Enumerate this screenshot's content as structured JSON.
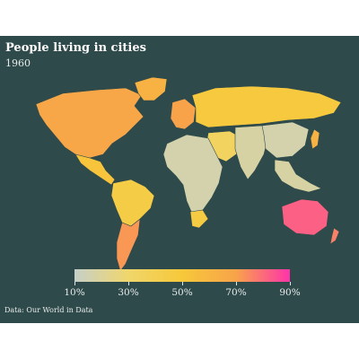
{
  "title": "People living in cities",
  "subtitle": "1960",
  "source": "Data: Our World in Data",
  "colors": {
    "background": "#2f4a4b",
    "scale": [
      "#c6d0c9",
      "#f0d66b",
      "#f7c83a",
      "#f8a34a",
      "#ff33aa"
    ]
  },
  "legend": {
    "min": 0.1,
    "max": 0.9,
    "ticks": [
      {
        "value": 0.1,
        "label": "10%"
      },
      {
        "value": 0.3,
        "label": "30%"
      },
      {
        "value": 0.5,
        "label": "50%"
      },
      {
        "value": 0.7,
        "label": "70%"
      },
      {
        "value": 0.9,
        "label": "90%"
      }
    ]
  },
  "regions": [
    {
      "name": "North America",
      "share": 0.68
    },
    {
      "name": "Greenland",
      "share": 0.62
    },
    {
      "name": "Mexico & Central America",
      "share": 0.52
    },
    {
      "name": "Northern South America",
      "share": 0.45
    },
    {
      "name": "Southern South America",
      "share": 0.72
    },
    {
      "name": "Western Europe",
      "share": 0.7
    },
    {
      "name": "Eastern Europe & Russia",
      "share": 0.48
    },
    {
      "name": "Middle East",
      "share": 0.35
    },
    {
      "name": "Africa",
      "share": 0.16
    },
    {
      "name": "South Africa",
      "share": 0.46
    },
    {
      "name": "South & Central Asia",
      "share": 0.18
    },
    {
      "name": "China",
      "share": 0.16
    },
    {
      "name": "Japan",
      "share": 0.62
    },
    {
      "name": "Southeast Asia",
      "share": 0.18
    },
    {
      "name": "Australia",
      "share": 0.82
    },
    {
      "name": "New Zealand",
      "share": 0.76
    }
  ]
}
